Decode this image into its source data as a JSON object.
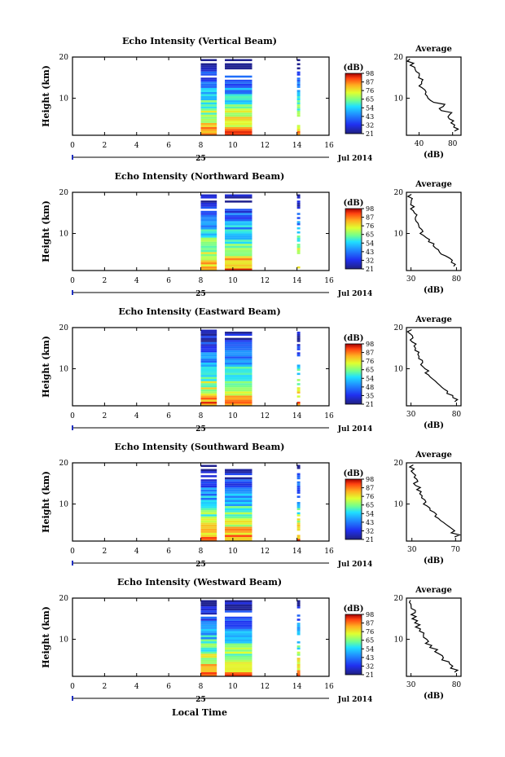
{
  "figure": {
    "date_label": "Jul 2014",
    "day_label": "25",
    "x_axis_title": "Local Time",
    "colorbar_unit": "(dB)",
    "avg_title": "Average",
    "avg_xlabel": "(dB)",
    "ylabel": "Height (km)"
  },
  "chart_data": [
    {
      "type": "heatmap",
      "title": "Echo Intensity (Vertical Beam)",
      "xlabel": "",
      "ylabel": "Height (km)",
      "xlim": [
        0,
        16
      ],
      "xticks": [
        0,
        2,
        4,
        6,
        8,
        10,
        12,
        14,
        16
      ],
      "ylim": [
        1,
        20
      ],
      "yticks": [
        10,
        20
      ],
      "data_blocks_hours": [
        [
          8.0,
          9.0
        ],
        [
          9.5,
          11.2
        ],
        [
          14.0,
          14.2
        ]
      ],
      "colorbar": {
        "unit": "(dB)",
        "ticks": [
          21,
          32,
          43,
          54,
          65,
          76,
          87,
          98
        ]
      },
      "average_profile": {
        "title": "Average",
        "xlabel": "(dB)",
        "xticks": [
          40,
          80
        ],
        "xlim": [
          25,
          90
        ],
        "height_km": [
          2,
          3,
          4,
          5,
          6,
          7,
          8,
          9,
          10,
          11,
          12,
          13,
          14,
          15,
          16,
          17,
          18,
          19
        ],
        "db": [
          85,
          82,
          80,
          75,
          78,
          65,
          70,
          55,
          50,
          48,
          45,
          42,
          44,
          40,
          38,
          35,
          32,
          28
        ]
      }
    },
    {
      "type": "heatmap",
      "title": "Echo Intensity (Northward Beam)",
      "xlabel": "",
      "ylabel": "Height (km)",
      "xlim": [
        0,
        16
      ],
      "xticks": [
        0,
        2,
        4,
        6,
        8,
        10,
        12,
        14,
        16
      ],
      "ylim": [
        1,
        20
      ],
      "yticks": [
        10,
        20
      ],
      "data_blocks_hours": [
        [
          8.0,
          9.0
        ],
        [
          9.5,
          11.2
        ],
        [
          14.0,
          14.2
        ]
      ],
      "colorbar": {
        "unit": "(dB)",
        "ticks": [
          21,
          32,
          43,
          54,
          65,
          76,
          87,
          98
        ]
      },
      "average_profile": {
        "title": "Average",
        "xlabel": "(dB)",
        "xticks": [
          30,
          80
        ],
        "xlim": [
          25,
          85
        ],
        "height_km": [
          2,
          3,
          4,
          5,
          6,
          7,
          8,
          9,
          10,
          11,
          12,
          13,
          14,
          15,
          16,
          17,
          18,
          19
        ],
        "db": [
          78,
          75,
          70,
          62,
          58,
          55,
          50,
          45,
          42,
          40,
          38,
          35,
          36,
          33,
          32,
          30,
          31,
          29
        ]
      }
    },
    {
      "type": "heatmap",
      "title": "Echo Intensity (Eastward Beam)",
      "xlabel": "",
      "ylabel": "Height (km)",
      "xlim": [
        0,
        16
      ],
      "xticks": [
        0,
        2,
        4,
        6,
        8,
        10,
        12,
        14,
        16
      ],
      "ylim": [
        1,
        20
      ],
      "yticks": [
        10,
        20
      ],
      "data_blocks_hours": [
        [
          8.0,
          9.0
        ],
        [
          9.5,
          11.2
        ],
        [
          14.0,
          14.2
        ]
      ],
      "colorbar": {
        "unit": "(dB)",
        "ticks": [
          21,
          35,
          48,
          54,
          65,
          76,
          87,
          98
        ]
      },
      "average_profile": {
        "title": "Average",
        "xlabel": "(dB)",
        "xticks": [
          30,
          80
        ],
        "xlim": [
          25,
          85
        ],
        "height_km": [
          2,
          3,
          4,
          5,
          6,
          7,
          8,
          9,
          10,
          11,
          12,
          13,
          14,
          15,
          16,
          17,
          18,
          19
        ],
        "db": [
          80,
          76,
          70,
          65,
          60,
          55,
          50,
          48,
          44,
          42,
          40,
          38,
          36,
          34,
          33,
          31,
          30,
          29
        ]
      }
    },
    {
      "type": "heatmap",
      "title": "Echo Intensity (Southward Beam)",
      "xlabel": "",
      "ylabel": "Height (km)",
      "xlim": [
        0,
        16
      ],
      "xticks": [
        0,
        2,
        4,
        6,
        8,
        10,
        12,
        14,
        16
      ],
      "ylim": [
        1,
        20
      ],
      "yticks": [
        10,
        20
      ],
      "data_blocks_hours": [
        [
          8.0,
          9.0
        ],
        [
          9.5,
          11.2
        ],
        [
          14.0,
          14.2
        ]
      ],
      "colorbar": {
        "unit": "(dB)",
        "ticks": [
          21,
          32,
          43,
          54,
          65,
          76,
          87,
          98
        ]
      },
      "average_profile": {
        "title": "Average",
        "xlabel": "(dB)",
        "xticks": [
          30,
          70
        ],
        "xlim": [
          25,
          75
        ],
        "height_km": [
          2,
          3,
          4,
          5,
          6,
          7,
          8,
          9,
          10,
          11,
          12,
          13,
          14,
          15,
          16,
          17,
          18,
          19
        ],
        "db": [
          72,
          68,
          65,
          60,
          55,
          52,
          48,
          45,
          42,
          40,
          38,
          36,
          35,
          34,
          33,
          32,
          31,
          30
        ]
      }
    },
    {
      "type": "heatmap",
      "title": "Echo Intensity (Westward Beam)",
      "xlabel": "",
      "ylabel": "Height (km)",
      "xlim": [
        0,
        16
      ],
      "xticks": [
        0,
        2,
        4,
        6,
        8,
        10,
        12,
        14,
        16
      ],
      "ylim": [
        1,
        20
      ],
      "yticks": [
        10,
        20
      ],
      "data_blocks_hours": [
        [
          8.0,
          9.0
        ],
        [
          9.5,
          11.2
        ],
        [
          14.0,
          14.2
        ]
      ],
      "colorbar": {
        "unit": "(dB)",
        "ticks": [
          21,
          32,
          43,
          54,
          65,
          76,
          87,
          98
        ]
      },
      "average_profile": {
        "title": "Average",
        "xlabel": "(dB)",
        "xticks": [
          30,
          80
        ],
        "xlim": [
          25,
          85
        ],
        "height_km": [
          2,
          3,
          4,
          5,
          6,
          7,
          8,
          9,
          10,
          11,
          12,
          13,
          14,
          15,
          16,
          17,
          18,
          19
        ],
        "db": [
          80,
          75,
          72,
          65,
          62,
          58,
          52,
          48,
          45,
          44,
          40,
          38,
          36,
          34,
          33,
          32,
          30,
          29
        ]
      }
    }
  ]
}
